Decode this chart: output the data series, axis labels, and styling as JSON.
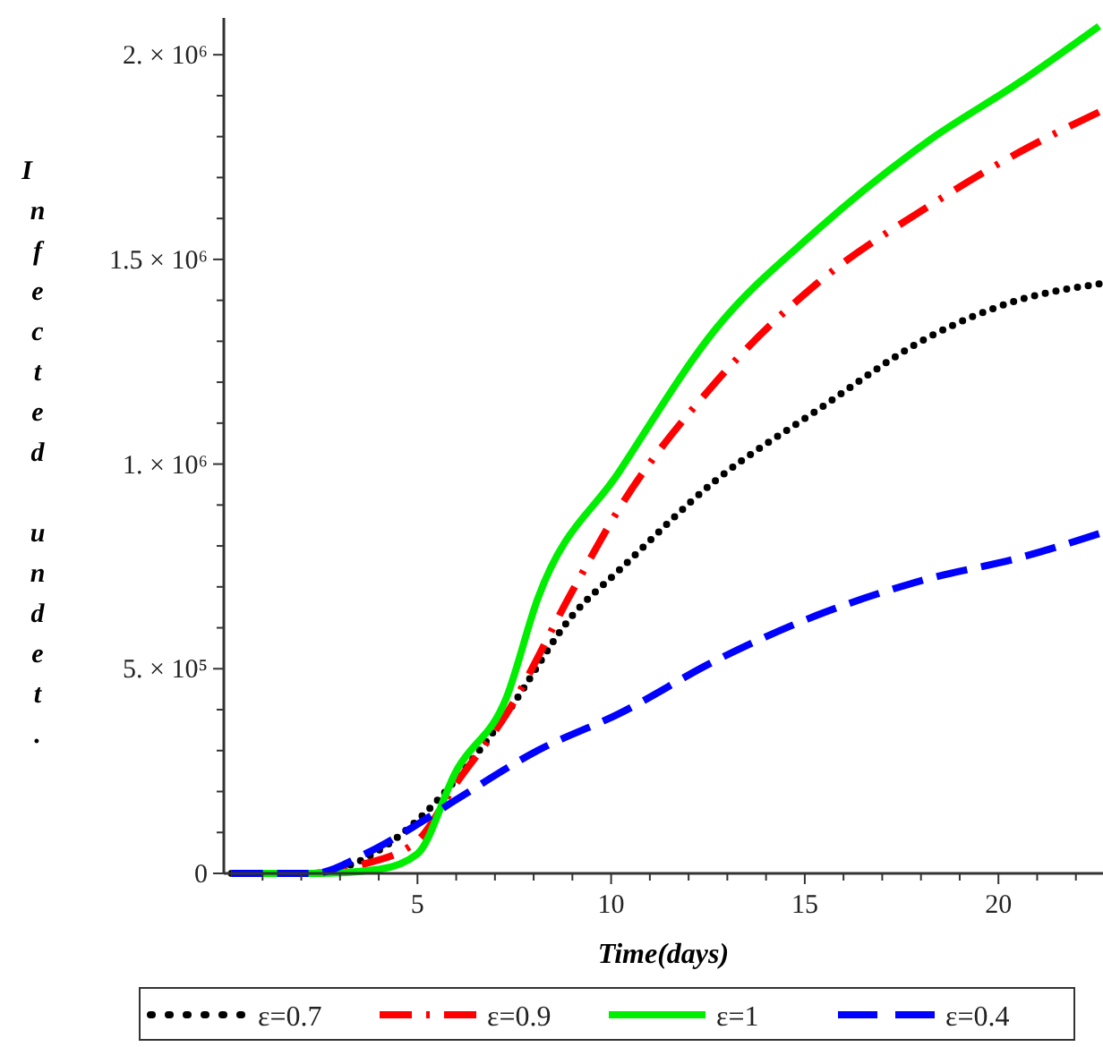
{
  "chart_data": {
    "type": "line",
    "xlabel": "Time(days)",
    "ylabel": "Infected undet.",
    "xlim": [
      0,
      22.7
    ],
    "xticks": [
      {
        "value": 1,
        "label": null
      },
      {
        "value": 2,
        "label": null
      },
      {
        "value": 3,
        "label": null
      },
      {
        "value": 4,
        "label": null
      },
      5,
      {
        "value": 6,
        "label": null
      },
      {
        "value": 7,
        "label": null
      },
      {
        "value": 8,
        "label": null
      },
      {
        "value": 9,
        "label": null
      },
      10,
      {
        "value": 11,
        "label": null
      },
      {
        "value": 12,
        "label": null
      },
      {
        "value": 13,
        "label": null
      },
      {
        "value": 14,
        "label": null
      },
      15,
      {
        "value": 16,
        "label": null
      },
      {
        "value": 17,
        "label": null
      },
      {
        "value": 18,
        "label": null
      },
      {
        "value": 19,
        "label": null
      },
      20,
      {
        "value": 21,
        "label": null
      },
      {
        "value": 22,
        "label": null
      }
    ],
    "ylim": [
      0,
      2090000
    ],
    "yticks": [
      {
        "value": 0,
        "label": "0"
      },
      {
        "value": 100000,
        "label": null
      },
      {
        "value": 200000,
        "label": null
      },
      {
        "value": 300000,
        "label": null
      },
      {
        "value": 400000,
        "label": null
      },
      {
        "value": 500000,
        "label": "5. × 10⁵"
      },
      {
        "value": 600000,
        "label": null
      },
      {
        "value": 700000,
        "label": null
      },
      {
        "value": 800000,
        "label": null
      },
      {
        "value": 900000,
        "label": null
      },
      {
        "value": 1000000,
        "label": "1. × 10⁶"
      },
      {
        "value": 1100000,
        "label": null
      },
      {
        "value": 1200000,
        "label": null
      },
      {
        "value": 1300000,
        "label": null
      },
      {
        "value": 1400000,
        "label": null
      },
      {
        "value": 1500000,
        "label": "1.5 × 10⁶"
      },
      {
        "value": 1600000,
        "label": null
      },
      {
        "value": 1700000,
        "label": null
      },
      {
        "value": 1800000,
        "label": null
      },
      {
        "value": 1900000,
        "label": null
      },
      {
        "value": 2000000,
        "label": "2. × 10⁶"
      }
    ],
    "grid": false,
    "legend": "bottom",
    "series": [
      {
        "name": "ε=0.7",
        "color": "#000000",
        "line_style": "dotted",
        "x": [
          0.2,
          2.3,
          3.5,
          5,
          6,
          7.3,
          9,
          10.2,
          12.7,
          15.3,
          18.2,
          20.5,
          22.6
        ],
        "values": [
          0,
          0,
          30000,
          130000,
          230000,
          390000,
          630000,
          740000,
          960000,
          1130000,
          1310000,
          1400000,
          1440000
        ]
      },
      {
        "name": "ε=0.9",
        "color": "#ff0000",
        "line_style": "dashdot",
        "x": [
          0.2,
          2.3,
          3.5,
          5,
          6,
          7.3,
          9,
          10.2,
          12.7,
          15.3,
          18.2,
          20.5,
          22.6
        ],
        "values": [
          0,
          0,
          20000,
          80000,
          220000,
          390000,
          690000,
          890000,
          1200000,
          1440000,
          1630000,
          1760000,
          1860000
        ]
      },
      {
        "name": "ε=1",
        "color": "#00ee00",
        "line_style": "solid",
        "x": [
          0.2,
          2.3,
          4,
          5,
          6,
          7.3,
          8.1,
          10.2,
          12.7,
          15.3,
          18.2,
          20.5,
          22.6
        ],
        "values": [
          0,
          0,
          10000,
          48000,
          250000,
          430000,
          670000,
          980000,
          1330000,
          1570000,
          1790000,
          1930000,
          2070000
        ]
      },
      {
        "name": "ε=0.4",
        "color": "#0000ff",
        "line_style": "dashed",
        "x": [
          0.2,
          2.3,
          3.7,
          5,
          6,
          8.1,
          10.2,
          12.7,
          15.3,
          18.2,
          20.5,
          22.6
        ],
        "values": [
          0,
          0,
          50000,
          120000,
          180000,
          300000,
          390000,
          520000,
          630000,
          720000,
          770000,
          830000
        ]
      }
    ]
  }
}
